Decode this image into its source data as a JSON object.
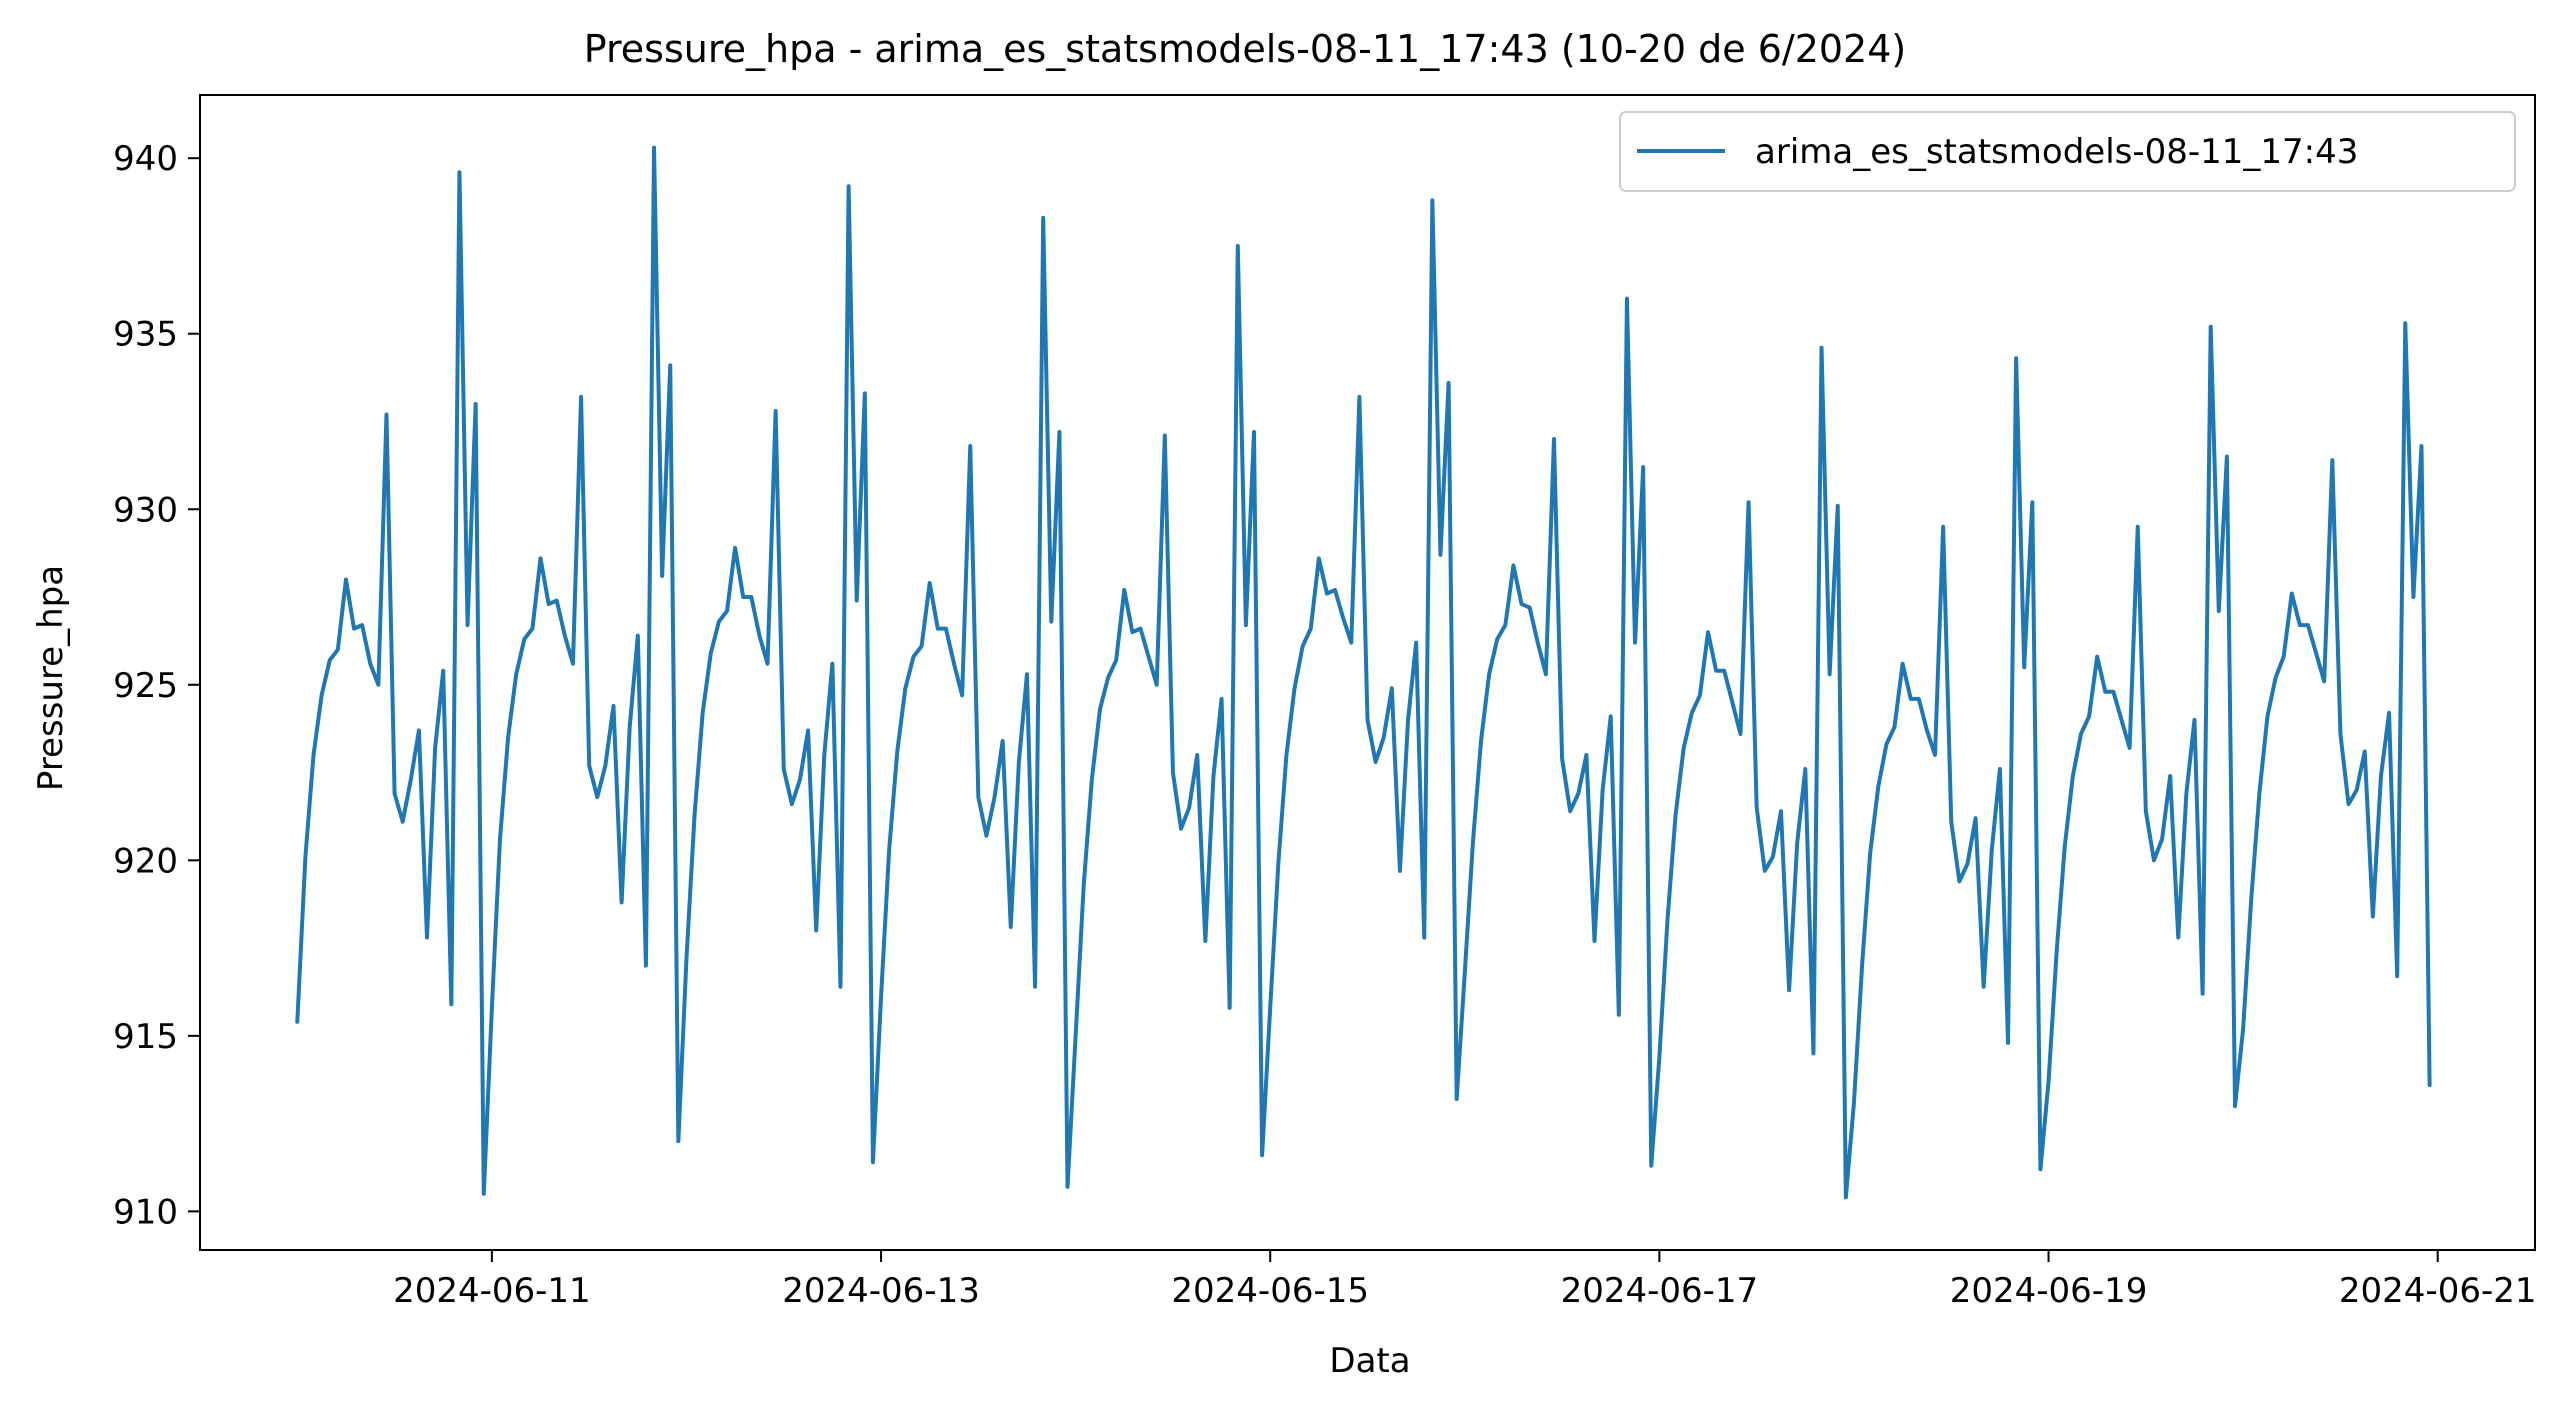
{
  "chart_data": {
    "type": "line",
    "title": "Pressure_hpa - arima_es_statsmodels-08-11_17:43 (10-20 de 6/2024)",
    "xlabel": "Data",
    "ylabel": "Pressure_hpa",
    "x_start": "2024-06-10T00:00",
    "x_step_hours": 1,
    "xlim": [
      "2024-06-09T12:00",
      "2024-06-21T12:00"
    ],
    "ylim": [
      908.9,
      941.8
    ],
    "x_ticks": [
      "2024-06-11",
      "2024-06-13",
      "2024-06-15",
      "2024-06-17",
      "2024-06-19",
      "2024-06-21"
    ],
    "y_ticks": [
      910,
      915,
      920,
      925,
      930,
      935,
      940
    ],
    "grid": false,
    "legend_position": "top-right",
    "series": [
      {
        "name": "arima_es_statsmodels-08-11_17:43",
        "color": "#1f77b4",
        "values": [
          915.4,
          920.1,
          923.0,
          924.7,
          925.7,
          926.0,
          928.0,
          926.6,
          926.7,
          925.6,
          925.0,
          932.7,
          921.9,
          921.1,
          922.3,
          923.7,
          917.8,
          923.2,
          925.4,
          915.9,
          939.6,
          926.7,
          933.0,
          910.5,
          915.8,
          920.6,
          923.5,
          925.3,
          926.3,
          926.6,
          928.6,
          927.3,
          927.4,
          926.4,
          925.6,
          933.2,
          922.7,
          921.8,
          922.7,
          924.4,
          918.8,
          923.8,
          926.4,
          917.0,
          940.3,
          928.1,
          934.1,
          912.0,
          917.2,
          921.3,
          924.2,
          925.9,
          926.8,
          927.1,
          928.9,
          927.5,
          927.5,
          926.4,
          925.6,
          932.8,
          922.6,
          921.6,
          922.3,
          923.7,
          918.0,
          923.0,
          925.6,
          916.4,
          939.2,
          927.4,
          933.3,
          911.4,
          916.1,
          920.3,
          923.1,
          924.9,
          925.8,
          926.1,
          927.9,
          926.6,
          926.6,
          925.6,
          924.7,
          931.8,
          921.8,
          920.7,
          921.8,
          923.4,
          918.1,
          922.8,
          925.3,
          916.4,
          938.3,
          926.8,
          932.2,
          910.7,
          915.0,
          919.3,
          922.3,
          924.3,
          925.2,
          925.7,
          927.7,
          926.5,
          926.6,
          925.8,
          925.0,
          932.1,
          922.5,
          920.9,
          921.5,
          923.0,
          917.7,
          922.4,
          924.6,
          915.8,
          937.5,
          926.7,
          932.2,
          911.6,
          915.8,
          919.9,
          923.0,
          924.9,
          926.1,
          926.6,
          928.6,
          927.6,
          927.7,
          926.9,
          926.2,
          933.2,
          924.0,
          922.8,
          923.5,
          924.9,
          919.7,
          924.0,
          926.2,
          917.8,
          938.8,
          928.7,
          933.6,
          913.2,
          916.8,
          920.5,
          923.4,
          925.3,
          926.3,
          926.7,
          928.4,
          927.3,
          927.2,
          926.2,
          925.3,
          932.0,
          922.9,
          921.4,
          921.9,
          923.0,
          917.7,
          922.0,
          924.1,
          915.6,
          936.0,
          926.2,
          931.2,
          911.3,
          914.4,
          918.3,
          921.3,
          923.2,
          924.2,
          924.7,
          926.5,
          925.4,
          925.4,
          924.5,
          923.6,
          930.2,
          921.5,
          919.7,
          920.1,
          921.4,
          916.3,
          920.5,
          922.6,
          914.5,
          934.6,
          925.3,
          930.1,
          910.4,
          913.1,
          917.0,
          920.2,
          922.1,
          923.3,
          923.8,
          925.6,
          924.6,
          924.6,
          923.7,
          923.0,
          929.5,
          921.1,
          919.4,
          919.9,
          921.2,
          916.4,
          920.3,
          922.6,
          914.8,
          934.3,
          925.5,
          930.2,
          911.2,
          913.7,
          917.4,
          920.4,
          922.4,
          923.6,
          924.1,
          925.8,
          924.8,
          924.8,
          924.0,
          923.2,
          929.5,
          921.4,
          920.0,
          920.6,
          922.4,
          917.8,
          921.9,
          924.0,
          916.2,
          935.2,
          927.1,
          931.5,
          913.0,
          915.2,
          918.9,
          921.9,
          924.1,
          925.2,
          925.8,
          927.6,
          926.7,
          926.7,
          925.9,
          925.1,
          931.4,
          923.6,
          921.6,
          922.0,
          923.1,
          918.4,
          922.4,
          924.2,
          916.7,
          935.3,
          927.5,
          931.8,
          913.6
        ]
      }
    ]
  }
}
